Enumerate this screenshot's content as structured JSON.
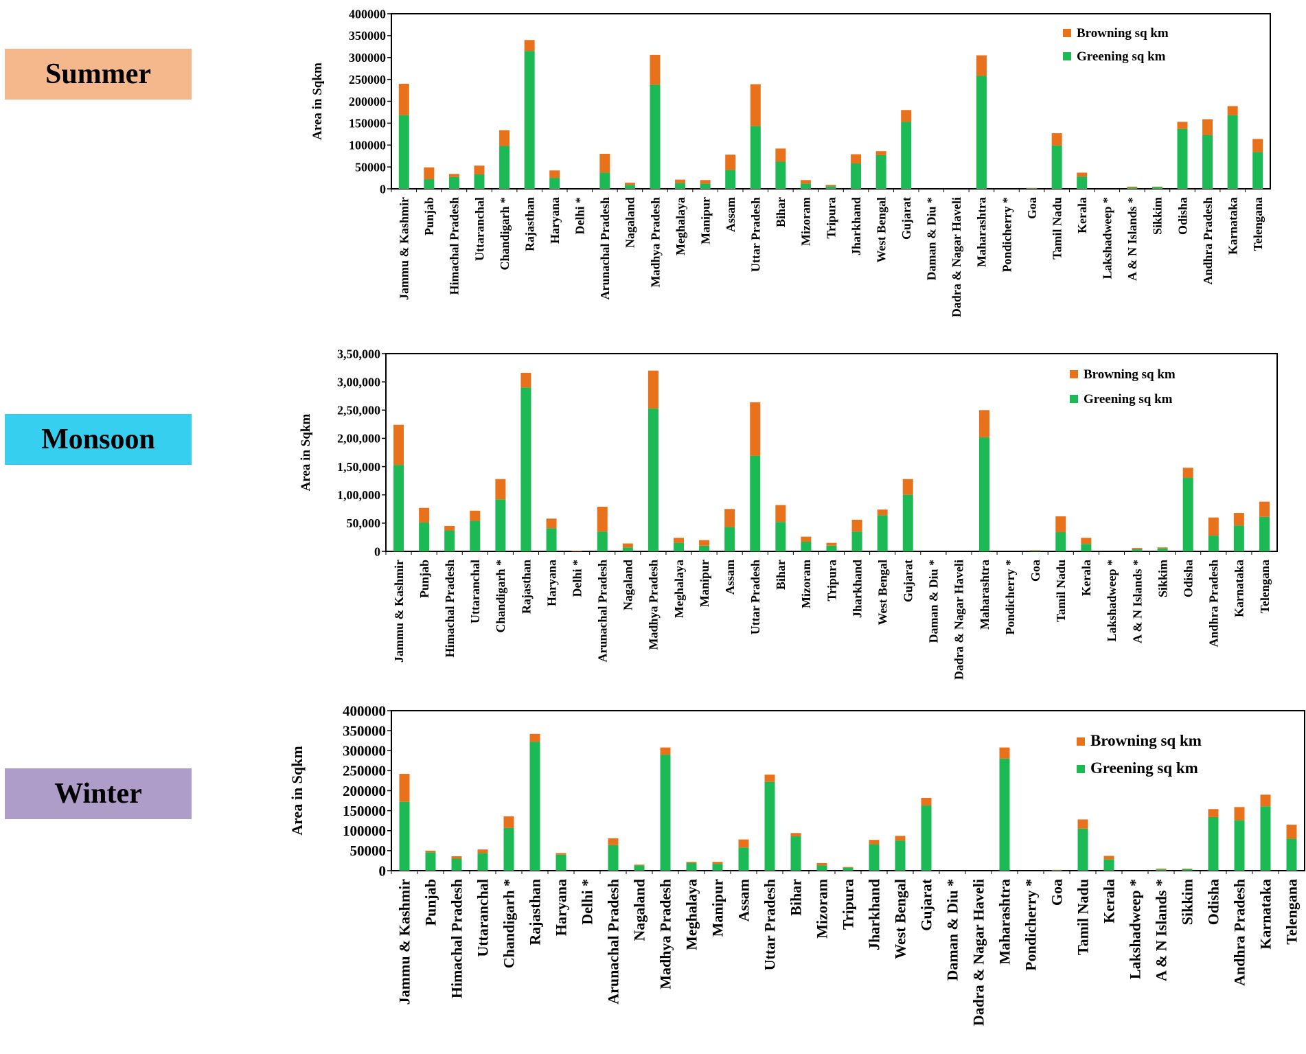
{
  "colors": {
    "greening": "#1DB954",
    "browning": "#E8711C",
    "summer_bg": "#F5B88D",
    "monsoon_bg": "#36CFEF",
    "winter_bg": "#AE9DC8"
  },
  "panels": [
    {
      "label": "Summer"
    },
    {
      "label": "Monsoon"
    },
    {
      "label": "Winter"
    }
  ],
  "chart_data": [
    {
      "type": "bar",
      "stacked": true,
      "title": "Summer",
      "ylabel": "Area in Sqkm",
      "xlabel": "",
      "ylim": [
        0,
        400000
      ],
      "yticks": [
        "0",
        "50000",
        "100000",
        "150000",
        "200000",
        "250000",
        "300000",
        "350000",
        "400000"
      ],
      "legend": [
        "Browning sq km",
        "Greening sq km"
      ],
      "legend_position": "top-right",
      "categories": [
        "Jammu & Kashmir",
        "Punjab",
        "Himachal Pradesh",
        "Uttaranchal",
        "Chandigarh *",
        "Rajasthan",
        "Haryana",
        "Delhi *",
        "Arunachal Pradesh",
        "Nagaland",
        "Madhya Pradesh",
        "Meghalaya",
        "Manipur",
        "Assam",
        "Uttar Pradesh",
        "Bihar",
        "Mizoram",
        "Tripura",
        "Jharkhand",
        "West Bengal",
        "Gujarat",
        "Daman & Diu *",
        "Dadra & Nagar Haveli",
        "Maharashtra",
        "Pondicherry *",
        "Goa",
        "Tamil Nadu",
        "Kerala",
        "Lakshadweep *",
        "A & N Islands *",
        "Sikkim",
        "Odisha",
        "Andhra Pradesh",
        "Karnataka",
        "Telengana"
      ],
      "series": [
        {
          "name": "Greening sq km",
          "values": [
            168000,
            22000,
            27000,
            33000,
            98000,
            315000,
            25000,
            0,
            37000,
            9000,
            238000,
            13000,
            12000,
            43000,
            143000,
            62000,
            12000,
            6000,
            58000,
            77000,
            153000,
            0,
            0,
            258000,
            0,
            1000,
            99000,
            28000,
            0,
            3000,
            4000,
            137000,
            123000,
            168000,
            84000
          ]
        },
        {
          "name": "Browning sq km",
          "values": [
            72000,
            27000,
            7000,
            20000,
            36000,
            25000,
            17000,
            0,
            43000,
            5000,
            68000,
            8000,
            8000,
            35000,
            96000,
            30000,
            8000,
            3000,
            21000,
            9000,
            27000,
            0,
            0,
            47000,
            0,
            1000,
            28000,
            9000,
            0,
            2000,
            1000,
            16000,
            36000,
            21000,
            30000
          ]
        }
      ]
    },
    {
      "type": "bar",
      "stacked": true,
      "title": "Monsoon",
      "ylabel": "Area in Sqkm",
      "xlabel": "",
      "ylim": [
        0,
        350000
      ],
      "yticks": [
        "0",
        "50,000",
        "1,00,000",
        "1,50,000",
        "2,00,000",
        "2,50,000",
        "3,00,000",
        "3,50,000"
      ],
      "legend": [
        "Browning sq km",
        "Greening sq km"
      ],
      "legend_position": "top-right",
      "categories": [
        "Jammu & Kashmir",
        "Punjab",
        "Himachal Pradesh",
        "Uttaranchal",
        "Chandigarh *",
        "Rajasthan",
        "Haryana",
        "Delhi *",
        "Arunachal Pradesh",
        "Nagaland",
        "Madhya Pradesh",
        "Meghalaya",
        "Manipur",
        "Assam",
        "Uttar Pradesh",
        "Bihar",
        "Mizoram",
        "Tripura",
        "Jharkhand",
        "West Bengal",
        "Gujarat",
        "Daman & Diu *",
        "Dadra & Nagar Haveli",
        "Maharashtra",
        "Pondicherry *",
        "Goa",
        "Tamil Nadu",
        "Kerala",
        "Lakshadweep *",
        "A & N Islands *",
        "Sikkim",
        "Odisha",
        "Andhra Pradesh",
        "Karnataka",
        "Telengana"
      ],
      "series": [
        {
          "name": "Greening sq km",
          "values": [
            153000,
            51000,
            37000,
            54000,
            92000,
            290000,
            41000,
            0,
            35000,
            7000,
            253000,
            15000,
            10000,
            43000,
            169000,
            52000,
            17000,
            10000,
            35000,
            64000,
            100000,
            0,
            0,
            202000,
            0,
            1000,
            34000,
            13000,
            0,
            4000,
            5000,
            130000,
            28000,
            46000,
            61000
          ]
        },
        {
          "name": "Browning sq km",
          "values": [
            71000,
            26000,
            8000,
            18000,
            36000,
            26000,
            17000,
            1000,
            44000,
            7000,
            67000,
            9000,
            10000,
            32000,
            95000,
            30000,
            9000,
            5000,
            21000,
            10000,
            28000,
            0,
            0,
            48000,
            0,
            1000,
            28000,
            11000,
            0,
            2000,
            2000,
            18000,
            32000,
            22000,
            27000
          ]
        }
      ]
    },
    {
      "type": "bar",
      "stacked": true,
      "title": "Winter",
      "ylabel": "Area in Sqkm",
      "xlabel": "",
      "ylim": [
        0,
        400000
      ],
      "yticks": [
        "0",
        "50000",
        "100000",
        "150000",
        "200000",
        "250000",
        "300000",
        "350000",
        "400000"
      ],
      "legend": [
        "Browning sq km",
        "Greening sq km"
      ],
      "legend_position": "top-right",
      "categories": [
        "Jammu & Kashmir",
        "Punjab",
        "Himachal Pradesh",
        "Uttaranchal",
        "Chandigarh *",
        "Rajasthan",
        "Haryana",
        "Delhi *",
        "Arunachal Pradesh",
        "Nagaland",
        "Madhya Pradesh",
        "Meghalaya",
        "Manipur",
        "Assam",
        "Uttar Pradesh",
        "Bihar",
        "Mizoram",
        "Tripura",
        "Jharkhand",
        "West Bengal",
        "Gujarat",
        "Daman & Diu *",
        "Dadra & Nagar Haveli",
        "Maharashtra",
        "Pondicherry *",
        "Goa",
        "Tamil Nadu",
        "Kerala",
        "Lakshadweep *",
        "A & N Islands *",
        "Sikkim",
        "Odisha",
        "Andhra Pradesh",
        "Karnataka",
        "Telengana"
      ],
      "series": [
        {
          "name": "Greening sq km",
          "values": [
            172000,
            46000,
            30000,
            44000,
            107000,
            322000,
            40000,
            0,
            64000,
            13000,
            290000,
            19000,
            17000,
            58000,
            222000,
            86000,
            13000,
            7000,
            66000,
            75000,
            163000,
            0,
            0,
            280000,
            0,
            1000,
            105000,
            28000,
            0,
            3000,
            4000,
            134000,
            126000,
            161000,
            80000
          ]
        },
        {
          "name": "Browning sq km",
          "values": [
            70000,
            4000,
            6000,
            9000,
            29000,
            20000,
            4000,
            0,
            17000,
            2000,
            18000,
            3000,
            5000,
            20000,
            18000,
            8000,
            6000,
            2000,
            11000,
            12000,
            19000,
            0,
            0,
            28000,
            0,
            1000,
            23000,
            9000,
            0,
            2000,
            1000,
            20000,
            33000,
            29000,
            35000
          ]
        }
      ]
    }
  ]
}
